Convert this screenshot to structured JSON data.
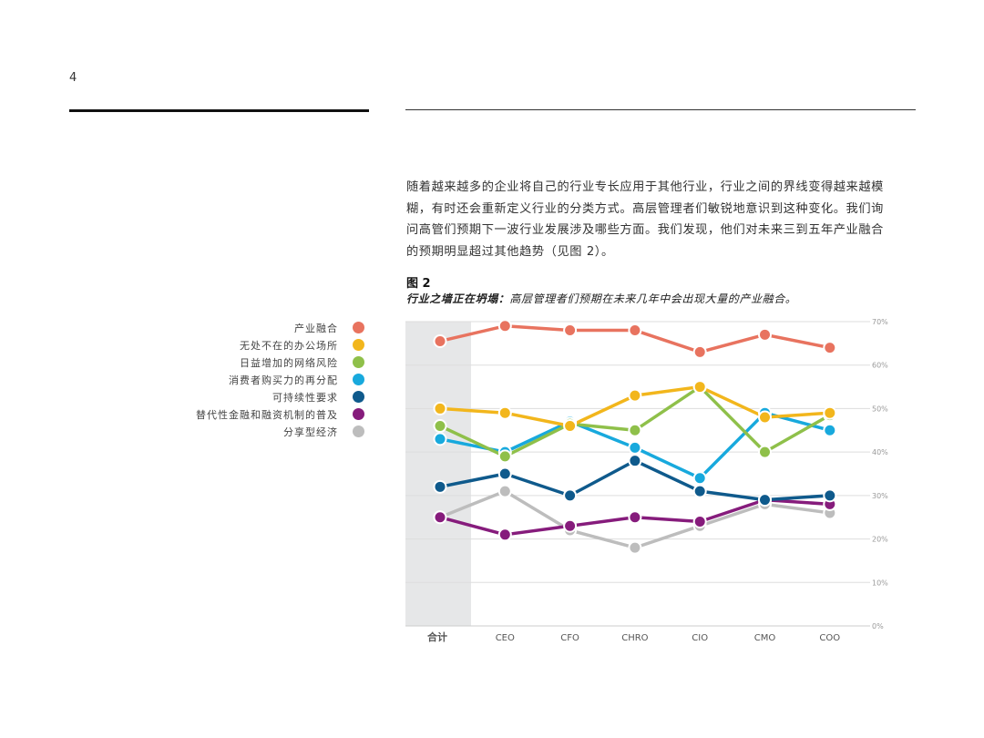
{
  "page": {
    "number": "4"
  },
  "intro": {
    "text": "随着越来越多的企业将自己的行业专长应用于其他行业，行业之间的界线变得越来越模糊，有时还会重新定义行业的分类方式。高层管理者们敏锐地意识到这种变化。我们询问高管们预期下一波行业发展涉及哪些方面。我们发现，他们对未来三到五年产业融合的预期明显超过其他趋势（见图 2）。"
  },
  "figure": {
    "label": "图 2",
    "caption_lead": "行业之墙正在坍塌：",
    "caption_rest": "高层管理者们预期在未来几年中会出现大量的产业融合。"
  },
  "chart_data": {
    "type": "line",
    "categories": [
      "合计",
      "CEO",
      "CFO",
      "CHRO",
      "CIO",
      "CMO",
      "COO"
    ],
    "highlight_category": "合计",
    "y_ticks": [
      "0%",
      "10%",
      "20%",
      "30%",
      "40%",
      "50%",
      "60%",
      "70%"
    ],
    "ylim": [
      0,
      70
    ],
    "grid": true,
    "legend_position": "left",
    "series": [
      {
        "name": "产业融合",
        "color": "#e8735f",
        "values": [
          65.5,
          69,
          68,
          68,
          63,
          67,
          64
        ]
      },
      {
        "name": "无处不在的办公场所",
        "color": "#f2b61c",
        "values": [
          50,
          49,
          46,
          53,
          55,
          48,
          49
        ]
      },
      {
        "name": "日益增加的网络风险",
        "color": "#8fc04a",
        "values": [
          46,
          39,
          46.5,
          45,
          55,
          40,
          48.5
        ]
      },
      {
        "name": "消费者购买力的再分配",
        "color": "#18a9dd",
        "values": [
          43,
          40,
          47,
          41,
          34,
          49,
          45
        ]
      },
      {
        "name": "可持续性要求",
        "color": "#0f5a8c",
        "values": [
          32,
          35,
          30,
          38,
          31,
          29,
          30
        ]
      },
      {
        "name": "替代性金融和融资机制的普及",
        "color": "#861c7c",
        "values": [
          25,
          21,
          23,
          25,
          24,
          29,
          28
        ]
      },
      {
        "name": "分享型经济",
        "color": "#bdbdbd",
        "values": [
          25,
          31,
          22,
          18,
          23,
          28,
          26
        ]
      }
    ]
  }
}
